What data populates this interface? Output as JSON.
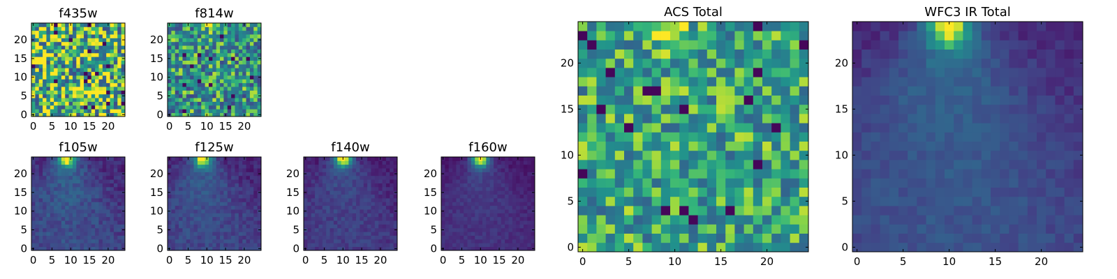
{
  "figure": {
    "description_free": true
  },
  "chart_data": [
    {
      "type": "heatmap",
      "title": "f435w",
      "xlabel": "",
      "ylabel": "",
      "xlim": [
        0,
        24
      ],
      "ylim": [
        0,
        24
      ],
      "xticks": [
        "0",
        "5",
        "10",
        "15",
        "20"
      ],
      "yticks": [
        "0",
        "5",
        "10",
        "15",
        "20"
      ],
      "grid": false,
      "colormap": "viridis",
      "pattern": "noise",
      "noise_level": 0.9,
      "base_level": 0.72,
      "hotspot": null
    },
    {
      "type": "heatmap",
      "title": "f814w",
      "xlabel": "",
      "ylabel": "",
      "xlim": [
        0,
        24
      ],
      "ylim": [
        0,
        24
      ],
      "xticks": [
        "0",
        "5",
        "10",
        "15",
        "20"
      ],
      "yticks": [
        "0",
        "5",
        "10",
        "15",
        "20"
      ],
      "grid": false,
      "colormap": "viridis",
      "pattern": "noise",
      "noise_level": 0.7,
      "base_level": 0.58,
      "hotspot": {
        "x": 9,
        "y": 24,
        "strength": 0.35
      }
    },
    {
      "type": "heatmap",
      "title": "f105w",
      "xlabel": "",
      "ylabel": "",
      "xlim": [
        0,
        24
      ],
      "ylim": [
        0,
        24
      ],
      "xticks": [
        "0",
        "5",
        "10",
        "15",
        "20"
      ],
      "yticks": [
        "0",
        "5",
        "10",
        "15",
        "20"
      ],
      "grid": false,
      "colormap": "viridis",
      "pattern": "source",
      "noise_level": 0.18,
      "base_level": 0.32,
      "hotspot": {
        "x": 9,
        "y": 24,
        "strength": 0.65
      }
    },
    {
      "type": "heatmap",
      "title": "f125w",
      "xlabel": "",
      "ylabel": "",
      "xlim": [
        0,
        24
      ],
      "ylim": [
        0,
        24
      ],
      "xticks": [
        "0",
        "5",
        "10",
        "15",
        "20"
      ],
      "yticks": [
        "0",
        "5",
        "10",
        "15",
        "20"
      ],
      "grid": false,
      "colormap": "viridis",
      "pattern": "source",
      "noise_level": 0.16,
      "base_level": 0.3,
      "hotspot": {
        "x": 9,
        "y": 24,
        "strength": 0.68
      }
    },
    {
      "type": "heatmap",
      "title": "f140w",
      "xlabel": "",
      "ylabel": "",
      "xlim": [
        0,
        24
      ],
      "ylim": [
        0,
        24
      ],
      "xticks": [
        "0",
        "5",
        "10",
        "15",
        "20"
      ],
      "yticks": [
        "0",
        "5",
        "10",
        "15",
        "20"
      ],
      "grid": false,
      "colormap": "viridis",
      "pattern": "source",
      "noise_level": 0.14,
      "base_level": 0.25,
      "hotspot": {
        "x": 10,
        "y": 24,
        "strength": 0.72
      }
    },
    {
      "type": "heatmap",
      "title": "f160w",
      "xlabel": "",
      "ylabel": "",
      "xlim": [
        0,
        24
      ],
      "ylim": [
        0,
        24
      ],
      "xticks": [
        "0",
        "5",
        "10",
        "15",
        "20"
      ],
      "yticks": [
        "0",
        "5",
        "10",
        "15",
        "20"
      ],
      "grid": false,
      "colormap": "viridis",
      "pattern": "source",
      "noise_level": 0.1,
      "base_level": 0.2,
      "hotspot": {
        "x": 10,
        "y": 24,
        "strength": 0.8
      }
    },
    {
      "type": "heatmap",
      "title": "ACS Total",
      "xlabel": "",
      "ylabel": "",
      "xlim": [
        0,
        24
      ],
      "ylim": [
        0,
        24
      ],
      "xticks": [
        "0",
        "5",
        "10",
        "15",
        "20"
      ],
      "yticks": [
        "0",
        "5",
        "10",
        "15",
        "20"
      ],
      "grid": false,
      "colormap": "viridis",
      "pattern": "noise",
      "noise_level": 0.55,
      "base_level": 0.66,
      "hotspot": {
        "x": 9,
        "y": 24,
        "strength": 0.3
      }
    },
    {
      "type": "heatmap",
      "title": "WFC3 IR Total",
      "xlabel": "",
      "ylabel": "",
      "xlim": [
        0,
        24
      ],
      "ylim": [
        0,
        24
      ],
      "xticks": [
        "0",
        "5",
        "10",
        "15",
        "20"
      ],
      "yticks": [
        "0",
        "5",
        "10",
        "15",
        "20"
      ],
      "grid": false,
      "colormap": "viridis",
      "pattern": "source",
      "noise_level": 0.12,
      "base_level": 0.35,
      "hotspot": {
        "x": 10,
        "y": 24,
        "strength": 0.6
      }
    }
  ]
}
